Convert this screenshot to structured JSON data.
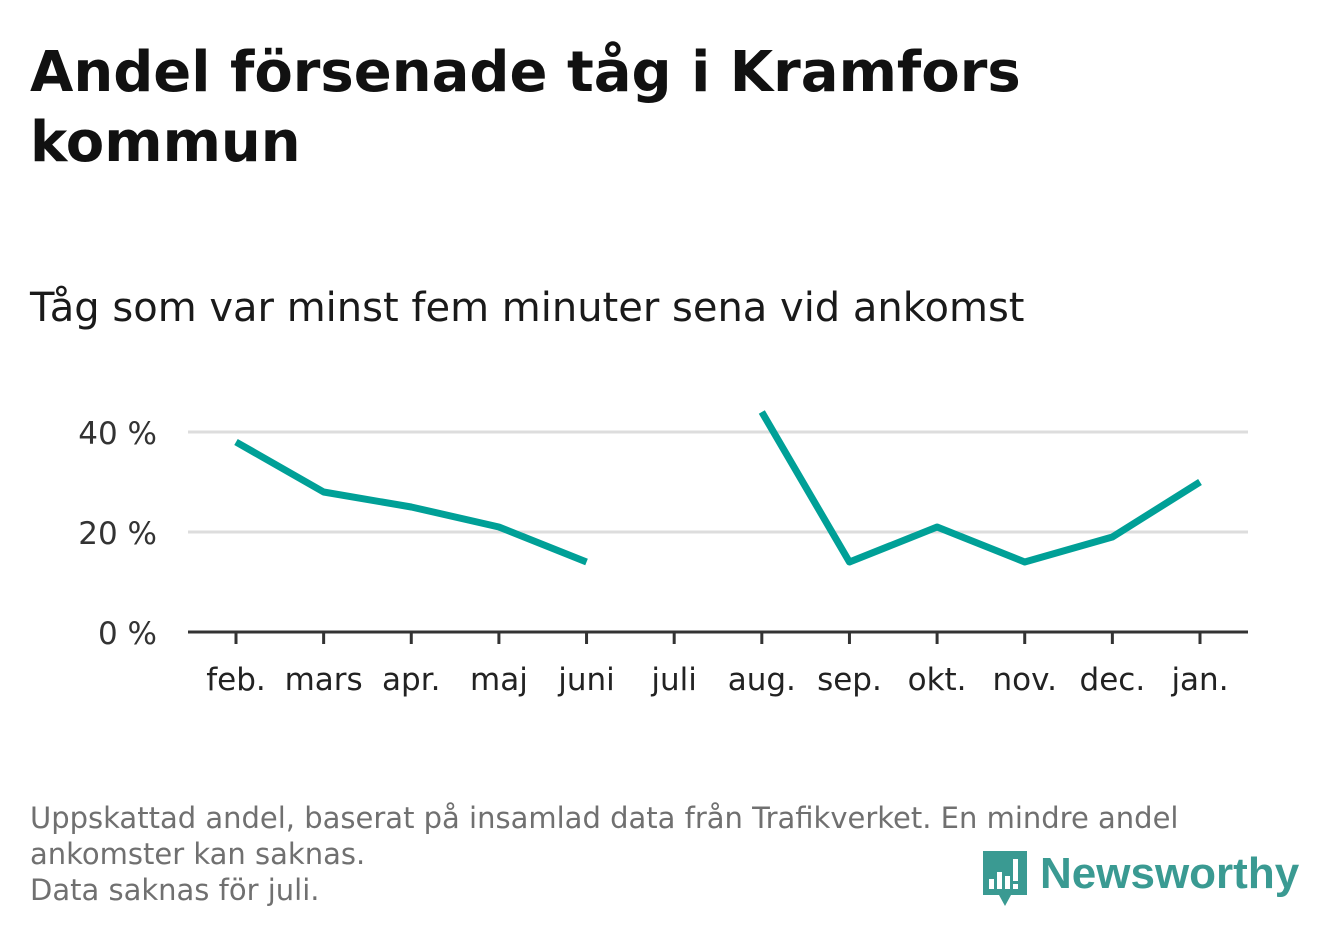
{
  "title": "Andel försenade tåg i Kramfors kommun",
  "subtitle": "Tåg som var minst fem minuter sena vid ankomst",
  "chart_data": {
    "type": "line",
    "categories": [
      "feb.",
      "mars",
      "apr.",
      "maj",
      "juni",
      "juli",
      "aug.",
      "sep.",
      "okt.",
      "nov.",
      "dec.",
      "jan."
    ],
    "series": [
      {
        "values": [
          38,
          28,
          25,
          21,
          14,
          null,
          44,
          14,
          21,
          14,
          19,
          30
        ]
      }
    ],
    "y_ticks": [
      0,
      20,
      40
    ],
    "y_tick_labels": [
      "0 %",
      "20 %",
      "40 %"
    ],
    "ylim": [
      0,
      48
    ],
    "grid": true,
    "line_color": "#00a097",
    "grid_color": "#dddddd",
    "axis_color": "#333333"
  },
  "footer": {
    "note_line1": "Uppskattad andel, baserat på insamlad data från Trafikverket. En mindre andel",
    "note_line2": "ankomster kan saknas.",
    "note_line3": "Data saknas för juli."
  },
  "logo": {
    "text": "Newsworthy",
    "icon": "newsworthy-logo-icon",
    "color": "#3a9a92"
  }
}
